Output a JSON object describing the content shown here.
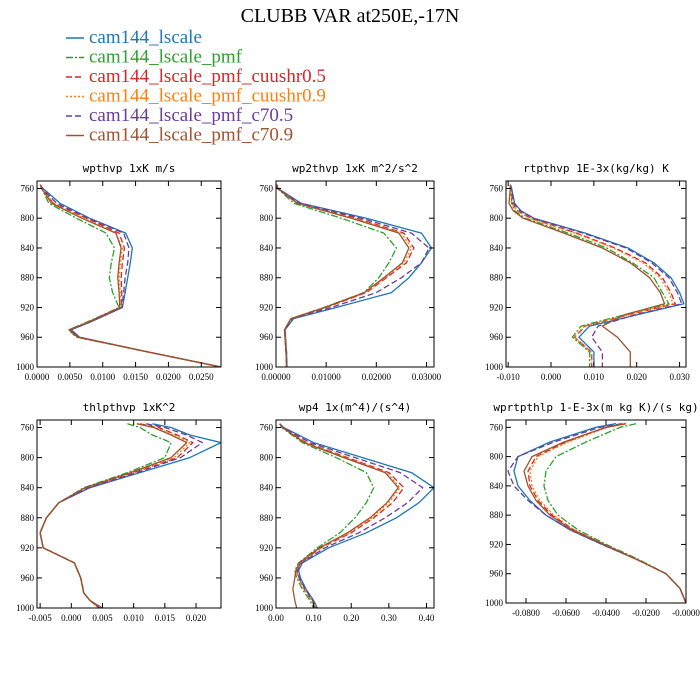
{
  "figure": {
    "title": "CLUBB VAR at250E,-17N"
  },
  "legend": [
    {
      "label": "cam144_lscale",
      "color": "#1f77b4",
      "dash": "solid"
    },
    {
      "label": "cam144_lscale_pmf",
      "color": "#2ca02c",
      "dash": "dashdot"
    },
    {
      "label": "cam144_lscale_pmf_cuushr0.5",
      "color": "#d62728",
      "dash": "dashed"
    },
    {
      "label": "cam144_lscale_pmf_cuushr0.9",
      "color": "#ff7f0e",
      "dash": "dotted"
    },
    {
      "label": "cam144_lscale_pmf_c70.5",
      "color": "#6a3d9a",
      "dash": "dashed"
    },
    {
      "label": "cam144_lscale_pmf_c70.9",
      "color": "#a0522d",
      "dash": "solid"
    }
  ],
  "chart_data": [
    {
      "type": "line",
      "title": "wpthvp  1xK m/s",
      "xlim": [
        0,
        0.028
      ],
      "ylim": [
        1000,
        750
      ],
      "xticks": [
        "0.0000",
        "0.0050",
        "0.0100",
        "0.0150",
        "0.0200",
        "0.0250"
      ],
      "xtick_values": [
        0,
        0.005,
        0.01,
        0.015,
        0.02,
        0.025
      ],
      "yticks": [
        "760",
        "800",
        "840",
        "880",
        "920",
        "960",
        "1000"
      ],
      "ytick_values": [
        760,
        800,
        840,
        880,
        920,
        960,
        1000
      ],
      "y": [
        755,
        760,
        780,
        800,
        820,
        840,
        860,
        880,
        900,
        920,
        940,
        950,
        960,
        980,
        1000
      ],
      "series": [
        {
          "values": [
            0.0005,
            0.0009,
            0.0035,
            0.008,
            0.0135,
            0.0145,
            0.0142,
            0.0138,
            0.0134,
            0.013,
            0.008,
            0.0052,
            0.0065,
            0.017,
            0.028
          ]
        },
        {
          "values": [
            0.0005,
            0.0007,
            0.0018,
            0.006,
            0.0105,
            0.0118,
            0.0113,
            0.011,
            0.0115,
            0.0125,
            0.0075,
            0.0048,
            0.006,
            0.017,
            0.028
          ]
        },
        {
          "values": [
            0.0005,
            0.0008,
            0.0025,
            0.0075,
            0.0125,
            0.0133,
            0.013,
            0.0128,
            0.0129,
            0.0128,
            0.0078,
            0.005,
            0.0063,
            0.017,
            0.028
          ]
        },
        {
          "values": [
            0.0005,
            0.0008,
            0.0025,
            0.0072,
            0.012,
            0.013,
            0.0127,
            0.0125,
            0.0127,
            0.0127,
            0.0077,
            0.0049,
            0.0062,
            0.017,
            0.028
          ]
        },
        {
          "values": [
            0.0005,
            0.0008,
            0.003,
            0.0078,
            0.0132,
            0.014,
            0.0138,
            0.0134,
            0.0132,
            0.0129,
            0.0079,
            0.0051,
            0.0064,
            0.017,
            0.028
          ]
        },
        {
          "values": [
            0.0005,
            0.0007,
            0.0022,
            0.0068,
            0.012,
            0.0128,
            0.0125,
            0.0123,
            0.0125,
            0.0126,
            0.0077,
            0.0049,
            0.0062,
            0.017,
            0.028
          ]
        }
      ]
    },
    {
      "type": "line",
      "title": "wp2thvp  1xK m^2/s^2",
      "xlim": [
        0,
        0.0315
      ],
      "ylim": [
        1000,
        750
      ],
      "xticks": [
        "0.00000",
        "0.01000",
        "0.02000",
        "0.03000"
      ],
      "xtick_values": [
        0,
        0.01,
        0.02,
        0.03
      ],
      "yticks": [
        "760",
        "800",
        "840",
        "880",
        "920",
        "960",
        "1000"
      ],
      "ytick_values": [
        760,
        800,
        840,
        880,
        920,
        960,
        1000
      ],
      "y": [
        755,
        760,
        780,
        800,
        820,
        840,
        860,
        880,
        900,
        920,
        935,
        950,
        960,
        980,
        1000
      ],
      "series": [
        {
          "values": [
            0.0002,
            0.0004,
            0.005,
            0.018,
            0.029,
            0.031,
            0.029,
            0.0265,
            0.023,
            0.012,
            0.0035,
            0.0018,
            0.0019,
            0.0021,
            0.0022
          ]
        },
        {
          "values": [
            0.0002,
            0.0003,
            0.0035,
            0.013,
            0.0215,
            0.024,
            0.0225,
            0.0205,
            0.0175,
            0.0095,
            0.003,
            0.0017,
            0.0018,
            0.002,
            0.0021
          ]
        },
        {
          "values": [
            0.0002,
            0.0003,
            0.0045,
            0.016,
            0.0255,
            0.0275,
            0.026,
            0.022,
            0.018,
            0.01,
            0.003,
            0.0017,
            0.0018,
            0.002,
            0.0021
          ]
        },
        {
          "values": [
            0.0002,
            0.0003,
            0.0044,
            0.0155,
            0.025,
            0.027,
            0.0255,
            0.0218,
            0.0178,
            0.0098,
            0.003,
            0.0017,
            0.0018,
            0.002,
            0.0021
          ]
        },
        {
          "values": [
            0.0002,
            0.0003,
            0.0048,
            0.017,
            0.027,
            0.0305,
            0.029,
            0.025,
            0.02,
            0.011,
            0.0033,
            0.0018,
            0.0019,
            0.0021,
            0.0022
          ]
        },
        {
          "values": [
            0.0002,
            0.0003,
            0.0042,
            0.015,
            0.0245,
            0.0265,
            0.0252,
            0.0215,
            0.0176,
            0.0097,
            0.003,
            0.0017,
            0.0018,
            0.002,
            0.0021
          ]
        }
      ]
    },
    {
      "type": "line",
      "title": "rtpthvp  1E-3x(kg/kg) K",
      "xlim": [
        -0.0105,
        0.0315
      ],
      "ylim": [
        1000,
        750
      ],
      "xticks": [
        "-0.010",
        "0.000",
        "0.010",
        "0.020",
        "0.030"
      ],
      "xtick_values": [
        -0.01,
        0,
        0.01,
        0.02,
        0.03
      ],
      "yticks": [
        "760",
        "800",
        "840",
        "880",
        "920",
        "960",
        "1000"
      ],
      "ytick_values": [
        760,
        800,
        840,
        880,
        920,
        960,
        1000
      ],
      "y": [
        755,
        760,
        780,
        790,
        800,
        820,
        840,
        860,
        880,
        900,
        915,
        930,
        945,
        960,
        980,
        1000
      ],
      "series": [
        {
          "values": [
            -0.0095,
            -0.0092,
            -0.0085,
            -0.007,
            -0.004,
            0.008,
            0.018,
            0.024,
            0.028,
            0.03,
            0.031,
            0.02,
            0.009,
            0.0065,
            0.01,
            0.01
          ]
        },
        {
          "values": [
            -0.0095,
            -0.0094,
            -0.0092,
            -0.0085,
            -0.006,
            0.004,
            0.013,
            0.019,
            0.024,
            0.026,
            0.0275,
            0.017,
            0.007,
            0.005,
            0.009,
            0.009
          ]
        },
        {
          "values": [
            -0.0095,
            -0.0093,
            -0.009,
            -0.0078,
            -0.0048,
            0.006,
            0.015,
            0.022,
            0.026,
            0.028,
            0.029,
            0.018,
            0.008,
            0.0055,
            0.0095,
            0.0095
          ]
        },
        {
          "values": [
            -0.0095,
            -0.0093,
            -0.0091,
            -0.008,
            -0.005,
            0.0055,
            0.0145,
            0.0215,
            0.0255,
            0.0275,
            0.0285,
            0.0178,
            0.0078,
            0.0054,
            0.0094,
            0.0094
          ]
        },
        {
          "values": [
            -0.0095,
            -0.0092,
            -0.0087,
            -0.0072,
            -0.0042,
            0.0075,
            0.0175,
            0.0235,
            0.0275,
            0.0295,
            0.0305,
            0.0195,
            0.011,
            0.0095,
            0.012,
            0.012
          ]
        },
        {
          "values": [
            -0.0095,
            -0.0095,
            -0.0098,
            -0.0088,
            -0.0065,
            0.003,
            0.012,
            0.0185,
            0.023,
            0.0255,
            0.0265,
            0.017,
            0.012,
            0.0155,
            0.0185,
            0.0185
          ]
        }
      ]
    },
    {
      "type": "line",
      "title": "thlpthvp  1xK^2",
      "xlim": [
        -0.0055,
        0.024
      ],
      "ylim": [
        1000,
        750
      ],
      "xticks": [
        "-0.005",
        "0.000",
        "0.005",
        "0.010",
        "0.015",
        "0.020"
      ],
      "xtick_values": [
        -0.005,
        0,
        0.005,
        0.01,
        0.015,
        0.02
      ],
      "yticks": [
        "760",
        "800",
        "840",
        "880",
        "920",
        "960",
        "1000"
      ],
      "ytick_values": [
        760,
        800,
        840,
        880,
        920,
        960,
        1000
      ],
      "y": [
        755,
        760,
        770,
        780,
        800,
        820,
        840,
        860,
        880,
        900,
        920,
        940,
        960,
        980,
        990,
        1000
      ],
      "series": [
        {
          "values": [
            0.013,
            0.016,
            0.019,
            0.024,
            0.019,
            0.011,
            0.003,
            -0.002,
            -0.004,
            -0.005,
            -0.0045,
            0.0005,
            0.0015,
            0.002,
            0.003,
            0.0045
          ]
        },
        {
          "values": [
            0.009,
            0.011,
            0.013,
            0.016,
            0.015,
            0.009,
            0.002,
            -0.002,
            -0.004,
            -0.005,
            -0.0045,
            0.0005,
            0.0015,
            0.002,
            0.003,
            0.0045
          ]
        },
        {
          "values": [
            0.011,
            0.014,
            0.017,
            0.0195,
            0.017,
            0.01,
            0.0025,
            -0.002,
            -0.004,
            -0.005,
            -0.0045,
            0.0005,
            0.0015,
            0.002,
            0.003,
            0.0045
          ]
        },
        {
          "values": [
            0.0105,
            0.0135,
            0.0165,
            0.019,
            0.0165,
            0.0098,
            0.0024,
            -0.002,
            -0.004,
            -0.005,
            -0.0045,
            0.0005,
            0.0015,
            0.002,
            0.003,
            0.0045
          ]
        },
        {
          "values": [
            0.012,
            0.015,
            0.0185,
            0.021,
            0.0175,
            0.0105,
            0.0028,
            -0.002,
            -0.004,
            -0.005,
            -0.0045,
            0.0005,
            0.0015,
            0.002,
            0.003,
            0.0045
          ]
        },
        {
          "values": [
            0.0105,
            0.0132,
            0.016,
            0.0185,
            0.016,
            0.0095,
            0.0022,
            -0.002,
            -0.004,
            -0.005,
            -0.0045,
            0.0005,
            0.0015,
            0.002,
            0.003,
            0.005
          ]
        }
      ]
    },
    {
      "type": "line",
      "title": "wp4  1x(m^4)/(s^4)",
      "xlim": [
        0,
        0.42
      ],
      "ylim": [
        1000,
        750
      ],
      "xticks": [
        "0.00",
        "0.10",
        "0.20",
        "0.30",
        "0.40"
      ],
      "xtick_values": [
        0,
        0.1,
        0.2,
        0.3,
        0.4
      ],
      "yticks": [
        "760",
        "800",
        "840",
        "880",
        "920",
        "960",
        "1000"
      ],
      "ytick_values": [
        760,
        800,
        840,
        880,
        920,
        960,
        1000
      ],
      "y": [
        755,
        760,
        780,
        800,
        820,
        840,
        860,
        880,
        900,
        920,
        940,
        950,
        960,
        975,
        990,
        1000
      ],
      "series": [
        {
          "values": [
            0.01,
            0.02,
            0.1,
            0.23,
            0.36,
            0.42,
            0.38,
            0.32,
            0.24,
            0.14,
            0.07,
            0.06,
            0.065,
            0.08,
            0.1,
            0.11
          ]
        },
        {
          "values": [
            0.01,
            0.015,
            0.07,
            0.16,
            0.24,
            0.26,
            0.24,
            0.21,
            0.17,
            0.11,
            0.06,
            0.05,
            0.055,
            0.07,
            0.09,
            0.1
          ]
        },
        {
          "values": [
            0.01,
            0.018,
            0.08,
            0.19,
            0.3,
            0.34,
            0.31,
            0.26,
            0.2,
            0.12,
            0.065,
            0.055,
            0.06,
            0.075,
            0.095,
            0.105
          ]
        },
        {
          "values": [
            0.01,
            0.017,
            0.078,
            0.185,
            0.295,
            0.33,
            0.3,
            0.255,
            0.195,
            0.118,
            0.064,
            0.054,
            0.06,
            0.075,
            0.095,
            0.105
          ]
        },
        {
          "values": [
            0.01,
            0.02,
            0.09,
            0.21,
            0.33,
            0.39,
            0.35,
            0.29,
            0.22,
            0.13,
            0.068,
            0.057,
            0.062,
            0.078,
            0.098,
            0.108
          ]
        },
        {
          "values": [
            0.01,
            0.017,
            0.075,
            0.18,
            0.29,
            0.325,
            0.295,
            0.25,
            0.19,
            0.115,
            0.062,
            0.053,
            0.05,
            0.045,
            0.05,
            0.055
          ]
        }
      ]
    },
    {
      "type": "line",
      "title": "wprtpthlp  1-E-3x(m kg K)/(s kg)",
      "xlim": [
        -0.09,
        0
      ],
      "ylim": [
        1000,
        750
      ],
      "xticks": [
        "-0.0800",
        "-0.0600",
        "-0.0400",
        "-0.0200",
        "-0.0000"
      ],
      "xtick_values": [
        -0.08,
        -0.06,
        -0.04,
        -0.02,
        0
      ],
      "yticks": [
        "760",
        "800",
        "840",
        "880",
        "920",
        "960",
        "1000"
      ],
      "ytick_values": [
        760,
        800,
        840,
        880,
        920,
        960,
        1000
      ],
      "y": [
        755,
        760,
        780,
        800,
        820,
        840,
        860,
        880,
        900,
        920,
        940,
        960,
        980,
        1000
      ],
      "series": [
        {
          "values": [
            -0.035,
            -0.045,
            -0.068,
            -0.084,
            -0.086,
            -0.084,
            -0.078,
            -0.07,
            -0.058,
            -0.042,
            -0.025,
            -0.01,
            -0.003,
            0
          ]
        },
        {
          "values": [
            -0.025,
            -0.033,
            -0.05,
            -0.065,
            -0.07,
            -0.071,
            -0.069,
            -0.064,
            -0.054,
            -0.04,
            -0.024,
            -0.01,
            -0.003,
            0
          ]
        },
        {
          "values": [
            -0.03,
            -0.04,
            -0.06,
            -0.075,
            -0.079,
            -0.078,
            -0.074,
            -0.067,
            -0.056,
            -0.041,
            -0.025,
            -0.01,
            -0.003,
            0
          ]
        },
        {
          "values": [
            -0.03,
            -0.039,
            -0.059,
            -0.074,
            -0.078,
            -0.077,
            -0.073,
            -0.066,
            -0.056,
            -0.041,
            -0.025,
            -0.01,
            -0.003,
            0
          ]
        },
        {
          "values": [
            -0.032,
            -0.043,
            -0.066,
            -0.084,
            -0.089,
            -0.086,
            -0.079,
            -0.07,
            -0.058,
            -0.042,
            -0.025,
            -0.01,
            -0.003,
            0
          ]
        },
        {
          "values": [
            -0.03,
            -0.04,
            -0.061,
            -0.077,
            -0.081,
            -0.079,
            -0.075,
            -0.068,
            -0.057,
            -0.041,
            -0.025,
            -0.01,
            -0.003,
            0
          ]
        }
      ]
    }
  ]
}
